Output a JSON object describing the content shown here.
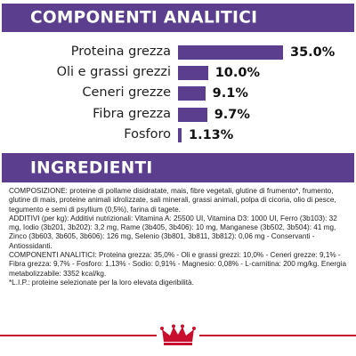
{
  "analytic": {
    "title": "COMPONENTI ANALITICI",
    "rows": [
      {
        "label": "Proteina grezza",
        "value_text": "35.0%",
        "value": 35.0
      },
      {
        "label": "Oli e grassi grezzi",
        "value_text": "10.0%",
        "value": 10.0
      },
      {
        "label": "Ceneri grezze",
        "value_text": "9.1%",
        "value": 9.1
      },
      {
        "label": "Fibra grezza",
        "value_text": "9.7%",
        "value": 9.7
      },
      {
        "label": "Fosforo",
        "value_text": "1.13%",
        "value": 1.13
      }
    ]
  },
  "ingredients": {
    "title": "INGREDIENTI",
    "composition": "COMPOSIZIONE: proteine di pollame disidratate, mais, fibre vegetali, glutine di frumento*, frumento, glutine di mais, proteine animali idrolizzate, sali minerali, grassi animali, polpa di cicoria, olio di pesce, tegumento e semi di psyllium (0,5%), farina di tagete.",
    "additives": "ADDITIVI (per kg): Additivi nutrizionali: Vitamina A: 25500 UI, Vitamina D3: 1000 UI, Ferro (3b103): 32 mg, Iodio (3b201, 3b202): 3,2 mg, Rame (3b405, 3b406): 10 mg, Manganese (3b502, 3b504): 41 mg, Zinco (3b603, 3b605, 3b606): 126 mg, Selenio (3b801, 3b811, 3b812): 0,06 mg - Conservanti - Antiossidanti.",
    "analytic_text": "COMPONENTI ANALITICI: Proteina grezza: 35,0% - Oli e grassi grezzi: 10,0% - Ceneri grezze: 9,1% - Fibra grezza: 9,7% - Fosforo: 1,13% - Sodio: 0,91% - Magnesio: 0,08% - L-carnitina: 200 mg/kg. Energia metabolizzabile: 3352 kcal/kg.",
    "footnote": "*L.I.P.: proteine selezionate per la loro elevata digeribilità."
  },
  "colors": {
    "accent": "#5b3f8e",
    "footer_red": "#c8102e"
  },
  "logo_icon": "crown-icon"
}
